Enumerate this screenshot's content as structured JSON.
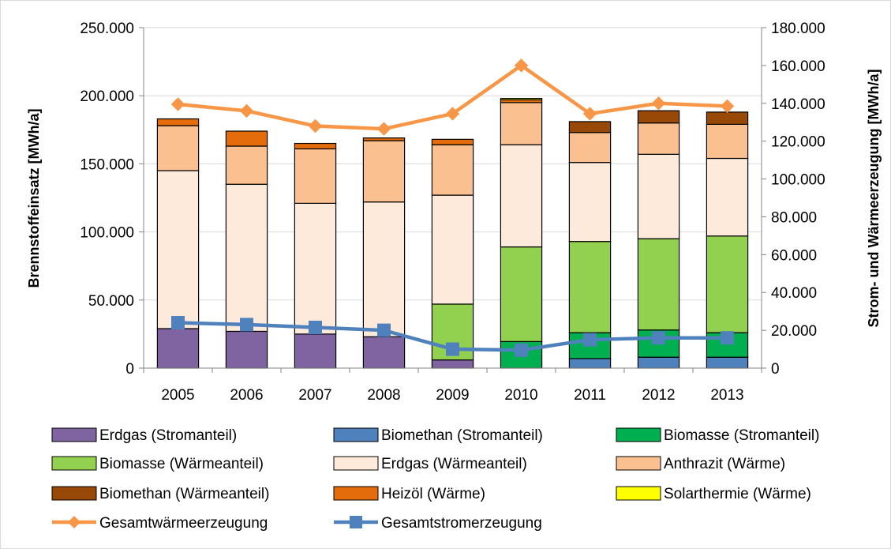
{
  "chart_data": {
    "type": "bar",
    "stacked": true,
    "categories": [
      "2005",
      "2006",
      "2007",
      "2008",
      "2009",
      "2010",
      "2011",
      "2012",
      "2013"
    ],
    "ylabel": "Brennstoffeinsatz [MWh/a]",
    "ylabel2": "Strom- und Wärmeerzeugung [MWh/a]",
    "ylim": [
      0,
      250000
    ],
    "ylim2": [
      0,
      180000
    ],
    "yticks": [
      "0",
      "50.000",
      "100.000",
      "150.000",
      "200.000",
      "250.000"
    ],
    "yticks2": [
      "0",
      "20.000",
      "40.000",
      "60.000",
      "80.000",
      "100.000",
      "120.000",
      "140.000",
      "160.000",
      "180.000"
    ],
    "grid": true,
    "legend_position": "bottom",
    "series": [
      {
        "name": "Erdgas (Stromanteil)",
        "color": "#8064A2",
        "values": [
          29000,
          27000,
          25000,
          23000,
          6000,
          0,
          0,
          0,
          0
        ]
      },
      {
        "name": "Biomethan (Stromanteil)",
        "color": "#4F81BD",
        "values": [
          0,
          0,
          0,
          0,
          0,
          0,
          7000,
          8000,
          8000
        ]
      },
      {
        "name": "Biomasse (Stromanteil)",
        "color": "#00B050",
        "values": [
          0,
          0,
          0,
          0,
          0,
          19500,
          19000,
          20000,
          18000
        ]
      },
      {
        "name": "Biomasse (Wärmeanteil)",
        "color": "#92D050",
        "values": [
          0,
          0,
          0,
          0,
          41000,
          69500,
          67000,
          67000,
          71000
        ]
      },
      {
        "name": "Erdgas (Wärmeanteil)",
        "color": "#FDEADA",
        "values": [
          116000,
          108000,
          96000,
          99000,
          80000,
          75000,
          58000,
          62000,
          57000
        ]
      },
      {
        "name": "Anthrazit (Wärme)",
        "color": "#FAC090",
        "values": [
          33000,
          28000,
          40000,
          45000,
          37000,
          31000,
          22000,
          23000,
          25000
        ]
      },
      {
        "name": "Biomethan (Wärmeanteil)",
        "color": "#984807",
        "values": [
          0,
          0,
          0,
          0,
          0,
          0,
          8000,
          9000,
          9000
        ]
      },
      {
        "name": "Heizöl (Wärme)",
        "color": "#E46C0A",
        "values": [
          5000,
          11000,
          4000,
          2000,
          4000,
          2000,
          0,
          0,
          0
        ]
      },
      {
        "name": "Solarthermie (Wärme)",
        "color": "#FFFF00",
        "values": [
          0,
          0,
          0,
          0,
          0,
          1000,
          0,
          0,
          0
        ]
      }
    ],
    "lines": [
      {
        "name": "Gesamtwärmeerzeugung",
        "color": "#F79646",
        "marker": "diamond",
        "axis": "right",
        "values": [
          139500,
          136000,
          128000,
          126500,
          134500,
          160000,
          134500,
          140000,
          138500
        ]
      },
      {
        "name": "Gesamtstromerzeugung",
        "color": "#4F81BD",
        "marker": "square",
        "axis": "right",
        "values": [
          24000,
          23000,
          21500,
          20000,
          10000,
          9500,
          15000,
          16000,
          16000
        ]
      }
    ]
  }
}
